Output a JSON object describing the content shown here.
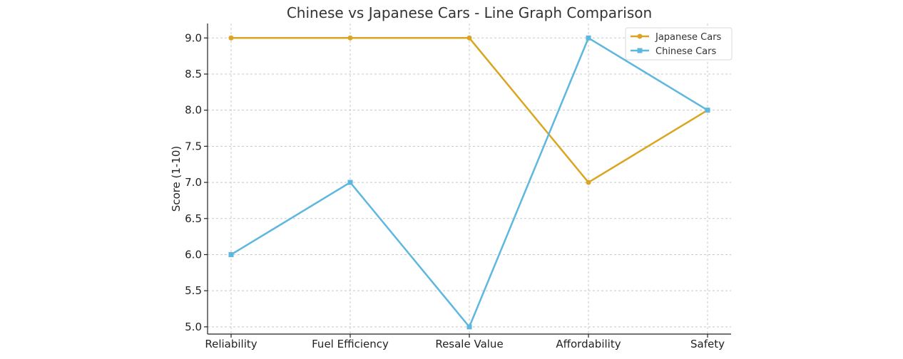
{
  "chart_data": {
    "type": "line",
    "title": "Chinese vs Japanese Cars - Line Graph Comparison",
    "xlabel": "",
    "ylabel": "Score (1-10)",
    "categories": [
      "Reliability",
      "Fuel Efficiency",
      "Resale Value",
      "Affordability",
      "Safety"
    ],
    "ylim": [
      4.9,
      9.2
    ],
    "yticks": [
      "5.0",
      "5.5",
      "6.0",
      "6.5",
      "7.0",
      "7.5",
      "8.0",
      "8.5",
      "9.0"
    ],
    "grid": true,
    "legend_position": "top-right",
    "series": [
      {
        "name": "Japanese Cars",
        "values": [
          9,
          9,
          9,
          7,
          8
        ],
        "color": "#DAA520",
        "marker": "circle"
      },
      {
        "name": "Chinese Cars",
        "values": [
          6,
          7,
          5,
          9,
          8
        ],
        "color": "#5DB7DE",
        "marker": "square"
      }
    ]
  }
}
